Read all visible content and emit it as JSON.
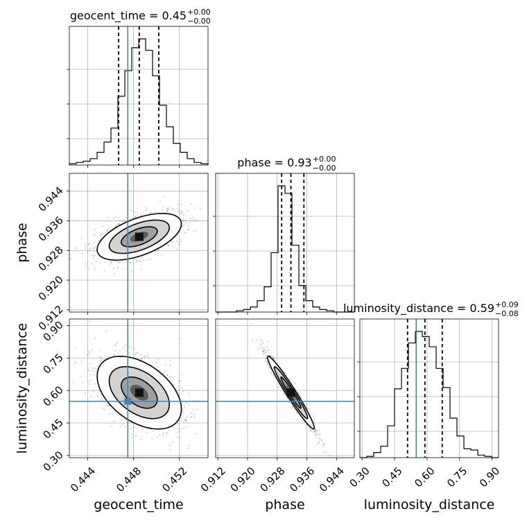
{
  "chart_data": {
    "type": "corner",
    "truth_color": "#4682b4",
    "parameters": [
      {
        "name": "geocent_time",
        "axis_label": "geocent_time",
        "range": [
          0.4424,
          0.4545
        ],
        "ticks": [
          "0.444",
          "0.448",
          "0.452"
        ],
        "tick_values": [
          0.444,
          0.448,
          0.452
        ],
        "truth": 0.4475,
        "title_main": "geocent_time = 0.45",
        "title_sup": "+0.00",
        "title_sub": "−0.00",
        "quantiles": [
          0.4467,
          0.4485,
          0.4502
        ],
        "hist_counts": [
          1,
          2,
          3,
          5,
          10,
          18,
          29,
          54,
          74,
          92,
          99,
          90,
          70,
          47,
          30,
          17,
          10,
          5,
          2,
          1
        ]
      },
      {
        "name": "phase",
        "axis_label": "phase",
        "range": [
          0.9114,
          0.9488
        ],
        "ticks": [
          "0.912",
          "0.920",
          "0.928",
          "0.936",
          "0.944"
        ],
        "tick_values": [
          0.912,
          0.92,
          0.928,
          0.936,
          0.944
        ],
        "truth": null,
        "title_main": "phase = 0.93",
        "title_sup": "+0.00",
        "title_sub": "−0.00",
        "quantiles": [
          0.9292,
          0.9317,
          0.9352
        ],
        "hist_counts": [
          0,
          0,
          0,
          1,
          2,
          4,
          9,
          20,
          47,
          100,
          94,
          53,
          21,
          9,
          4,
          2,
          1,
          0,
          0,
          0
        ]
      },
      {
        "name": "luminosity_distance",
        "axis_label": "luminosity_distance",
        "range": [
          0.29,
          0.93
        ],
        "ticks": [
          "0.30",
          "0.45",
          "0.60",
          "0.75",
          "0.90"
        ],
        "tick_values": [
          0.3,
          0.45,
          0.6,
          0.75,
          0.9
        ],
        "truth": 0.55,
        "title_main": "luminosity_distance = 0.59",
        "title_sup": "+0.09",
        "title_sub": "−0.08",
        "quantiles": [
          0.51,
          0.59,
          0.67
        ],
        "hist_counts": [
          0,
          1,
          4,
          9,
          25,
          54,
          70,
          90,
          99,
          95,
          87,
          70,
          55,
          31,
          17,
          7,
          6,
          2,
          1,
          0
        ]
      }
    ],
    "correlations": {
      "1-0": 0.55,
      "2-0": -0.45,
      "2-1": -0.97
    }
  }
}
